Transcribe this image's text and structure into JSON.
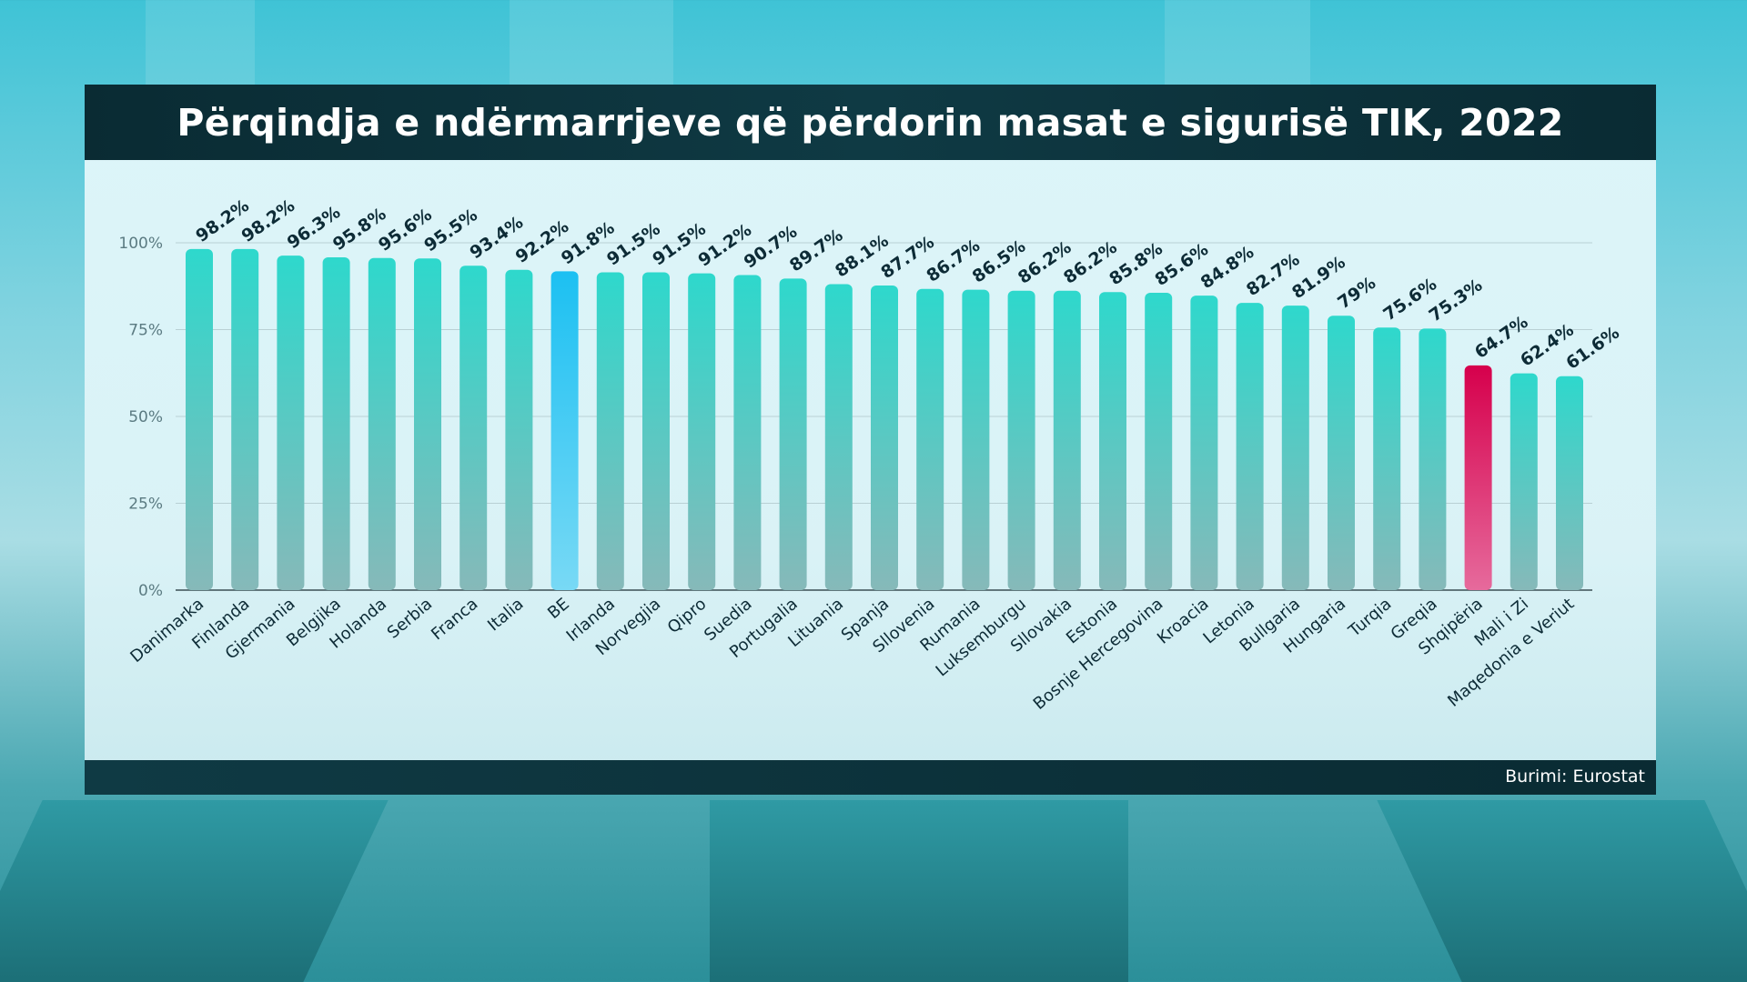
{
  "header": {
    "title": "Përqindja e ndërmarrjeve që përdorin masat e sigurisë TIK, 2022"
  },
  "footer": {
    "source": "Burimi: Eurostat"
  },
  "colors": {
    "bar": "#2fd3c9",
    "bar_bottom": "#7fb8b8",
    "highlight_eu": "#22c4ef",
    "highlight_albania": "#d8004f",
    "label": "#0d2b36",
    "axis_text": "#5b7b82"
  },
  "chart_data": {
    "type": "bar",
    "title": "Përqindja e ndërmarrjeve që përdorin masat e sigurisë TIK, 2022",
    "xlabel": "",
    "ylabel": "",
    "ylim": [
      0,
      100
    ],
    "yticks": [
      "0%",
      "25%",
      "50%",
      "75%",
      "100%"
    ],
    "grid": true,
    "categories": [
      "Danimarka",
      "Finlanda",
      "Gjermania",
      "Belgjika",
      "Holanda",
      "Serbia",
      "Franca",
      "Italia",
      "BE",
      "Irlanda",
      "Norvegjia",
      "Qipro",
      "Suedia",
      "Portugalia",
      "Lituania",
      "Spanja",
      "Sllovenia",
      "Rumania",
      "Luksemburgu",
      "Sllovakia",
      "Estonia",
      "Bosnje Hercegovina",
      "Kroacia",
      "Letonia",
      "Bullgaria",
      "Hungaria",
      "Turqia",
      "Greqia",
      "Shqipëria",
      "Mali i Zi",
      "Maqedonia e Veriut"
    ],
    "values": [
      98.2,
      98.2,
      96.3,
      95.8,
      95.6,
      95.5,
      93.4,
      92.2,
      91.8,
      91.5,
      91.5,
      91.2,
      90.7,
      89.7,
      88.1,
      87.7,
      86.7,
      86.5,
      86.2,
      86.2,
      85.8,
      85.6,
      84.8,
      82.7,
      81.9,
      79,
      75.6,
      75.3,
      64.7,
      62.4,
      61.6
    ],
    "value_labels": [
      "98.2%",
      "98.2%",
      "96.3%",
      "95.8%",
      "95.6%",
      "95.5%",
      "93.4%",
      "92.2%",
      "91.8%",
      "91.5%",
      "91.5%",
      "91.2%",
      "90.7%",
      "89.7%",
      "88.1%",
      "87.7%",
      "86.7%",
      "86.5%",
      "86.2%",
      "86.2%",
      "85.8%",
      "85.6%",
      "84.8%",
      "82.7%",
      "81.9%",
      "79%",
      "75.6%",
      "75.3%",
      "64.7%",
      "62.4%",
      "61.6%"
    ],
    "highlights": {
      "BE": "eu",
      "Shqipëria": "albania"
    }
  }
}
